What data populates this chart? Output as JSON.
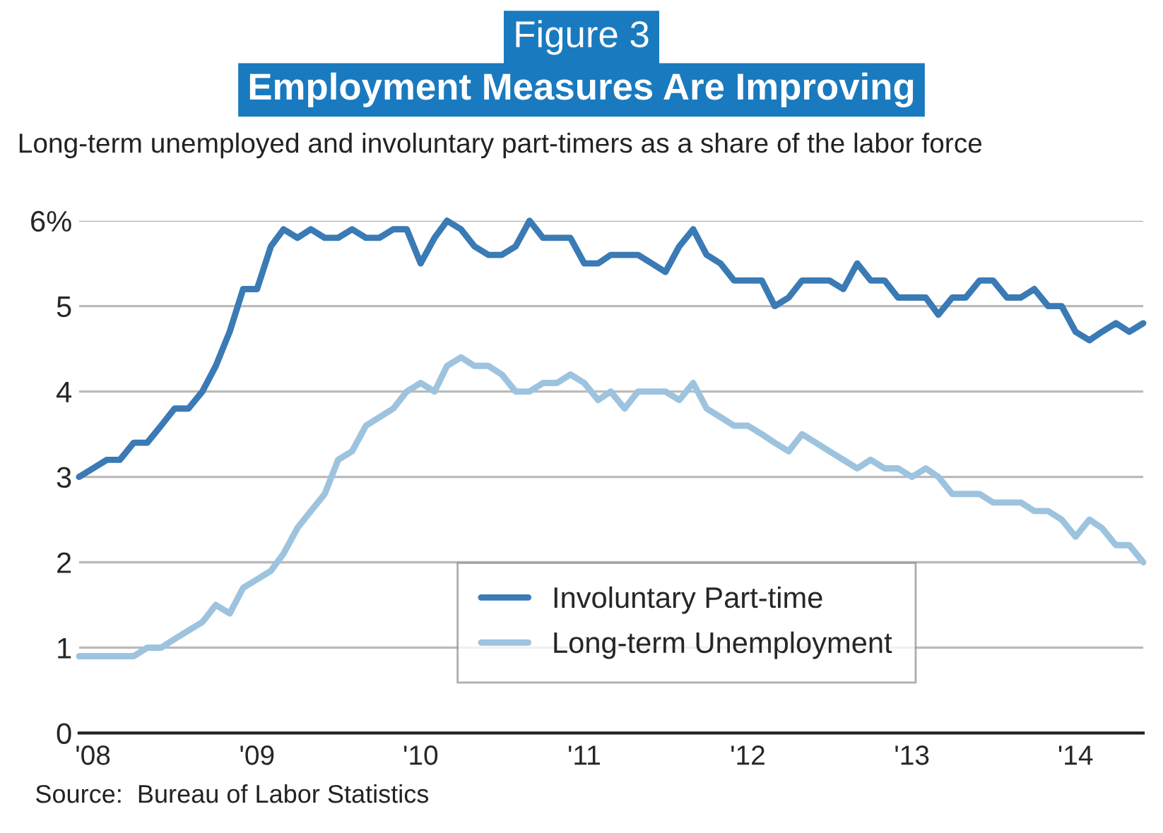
{
  "chart_data": {
    "type": "line",
    "title": "Figure 3",
    "subtitle": "Employment Measures Are Improving",
    "annotations": [
      "Long-term unemployed and involuntary part-timers as a share of the labor force",
      "Source:  Bureau of Labor Statistics"
    ],
    "x": [
      "2007-12",
      "2008-01",
      "2008-02",
      "2008-03",
      "2008-04",
      "2008-05",
      "2008-06",
      "2008-07",
      "2008-08",
      "2008-09",
      "2008-10",
      "2008-11",
      "2008-12",
      "2009-01",
      "2009-02",
      "2009-03",
      "2009-04",
      "2009-05",
      "2009-06",
      "2009-07",
      "2009-08",
      "2009-09",
      "2009-10",
      "2009-11",
      "2009-12",
      "2010-01",
      "2010-02",
      "2010-03",
      "2010-04",
      "2010-05",
      "2010-06",
      "2010-07",
      "2010-08",
      "2010-09",
      "2010-10",
      "2010-11",
      "2010-12",
      "2011-01",
      "2011-02",
      "2011-03",
      "2011-04",
      "2011-05",
      "2011-06",
      "2011-07",
      "2011-08",
      "2011-09",
      "2011-10",
      "2011-11",
      "2011-12",
      "2012-01",
      "2012-02",
      "2012-03",
      "2012-04",
      "2012-05",
      "2012-06",
      "2012-07",
      "2012-08",
      "2012-09",
      "2012-10",
      "2012-11",
      "2012-12",
      "2013-01",
      "2013-02",
      "2013-03",
      "2013-04",
      "2013-05",
      "2013-06",
      "2013-07",
      "2013-08",
      "2013-09",
      "2013-10",
      "2013-11",
      "2013-12",
      "2014-01",
      "2014-02",
      "2014-03",
      "2014-04",
      "2014-05",
      "2014-06"
    ],
    "series": [
      {
        "name": "Involuntary Part-time",
        "color": "#3a7ab5",
        "values": [
          3.0,
          3.1,
          3.2,
          3.2,
          3.4,
          3.4,
          3.6,
          3.8,
          3.8,
          4.0,
          4.3,
          4.7,
          5.2,
          5.2,
          5.7,
          5.9,
          5.8,
          5.9,
          5.8,
          5.8,
          5.9,
          5.8,
          5.8,
          5.9,
          5.9,
          5.5,
          5.8,
          6.0,
          5.9,
          5.7,
          5.6,
          5.6,
          5.7,
          6.0,
          5.8,
          5.8,
          5.8,
          5.5,
          5.5,
          5.6,
          5.6,
          5.6,
          5.5,
          5.4,
          5.7,
          5.9,
          5.6,
          5.5,
          5.3,
          5.3,
          5.3,
          5.0,
          5.1,
          5.3,
          5.3,
          5.3,
          5.2,
          5.5,
          5.3,
          5.3,
          5.1,
          5.1,
          5.1,
          4.9,
          5.1,
          5.1,
          5.3,
          5.3,
          5.1,
          5.1,
          5.2,
          5.0,
          5.0,
          4.7,
          4.6,
          4.7,
          4.8,
          4.7,
          4.8
        ]
      },
      {
        "name": "Long-term Unemployment",
        "color": "#9dc3df",
        "values": [
          0.9,
          0.9,
          0.9,
          0.9,
          0.9,
          1.0,
          1.0,
          1.1,
          1.2,
          1.3,
          1.5,
          1.4,
          1.7,
          1.8,
          1.9,
          2.1,
          2.4,
          2.6,
          2.8,
          3.2,
          3.3,
          3.6,
          3.7,
          3.8,
          4.0,
          4.1,
          4.0,
          4.3,
          4.4,
          4.3,
          4.3,
          4.2,
          4.0,
          4.0,
          4.1,
          4.1,
          4.2,
          4.1,
          3.9,
          4.0,
          3.8,
          4.0,
          4.0,
          4.0,
          3.9,
          4.1,
          3.8,
          3.7,
          3.6,
          3.6,
          3.5,
          3.4,
          3.3,
          3.5,
          3.4,
          3.3,
          3.2,
          3.1,
          3.2,
          3.1,
          3.1,
          3.0,
          3.1,
          3.0,
          2.8,
          2.8,
          2.8,
          2.7,
          2.7,
          2.7,
          2.6,
          2.6,
          2.5,
          2.3,
          2.5,
          2.4,
          2.2,
          2.2,
          2.0
        ]
      }
    ],
    "xlim": [
      "2007-12",
      "2014-06"
    ],
    "xticks": [
      {
        "value": "2008-01",
        "label": "'08"
      },
      {
        "value": "2009-01",
        "label": "'09"
      },
      {
        "value": "2010-01",
        "label": "'10"
      },
      {
        "value": "2011-01",
        "label": "'11"
      },
      {
        "value": "2012-01",
        "label": "'12"
      },
      {
        "value": "2013-01",
        "label": "'13"
      },
      {
        "value": "2014-01",
        "label": "'14"
      }
    ],
    "ylim": [
      0,
      6
    ],
    "yticks": [
      0,
      1,
      2,
      3,
      4,
      5,
      {
        "value": 6,
        "label": "6%"
      }
    ],
    "grid": "y",
    "legend": "bottom right",
    "marker": "none",
    "line_style": "solid"
  }
}
